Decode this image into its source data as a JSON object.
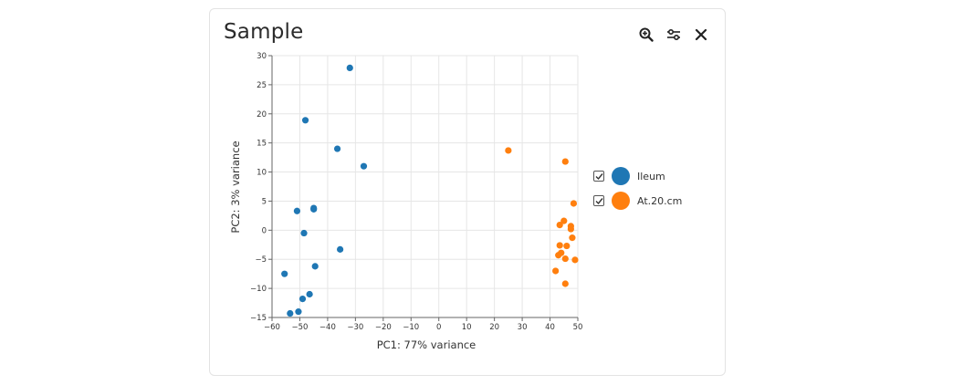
{
  "card": {
    "title": "Sample"
  },
  "toolbar": {
    "icons": [
      "zoom-in-icon",
      "sliders-icon",
      "close-icon"
    ]
  },
  "legend": {
    "items": [
      {
        "label": "Ileum",
        "color": "#1f77b4",
        "checked": true
      },
      {
        "label": "At.20.cm",
        "color": "#ff7f0e",
        "checked": true
      }
    ]
  },
  "chart_data": {
    "type": "scatter",
    "xlabel": "PC1: 77% variance",
    "ylabel": "PC2: 3% variance",
    "xlim": [
      -60,
      50
    ],
    "ylim": [
      -15,
      30
    ],
    "xticks": [
      -60,
      -50,
      -40,
      -30,
      -20,
      -10,
      0,
      10,
      20,
      30,
      40,
      50
    ],
    "yticks": [
      -15,
      -10,
      -5,
      0,
      5,
      10,
      15,
      20,
      25,
      30
    ],
    "grid": true,
    "legend_position": "right",
    "series": [
      {
        "name": "Ileum",
        "color": "#1f77b4",
        "points": [
          [
            -32,
            27.9
          ],
          [
            -48,
            18.9
          ],
          [
            -36.5,
            14
          ],
          [
            -27,
            11
          ],
          [
            -51,
            3.3
          ],
          [
            -45,
            3.6
          ],
          [
            -45,
            3.8
          ],
          [
            -48.5,
            -0.5
          ],
          [
            -35.5,
            -3.3
          ],
          [
            -44.5,
            -6.2
          ],
          [
            -55.5,
            -7.5
          ],
          [
            -46.5,
            -11
          ],
          [
            -49,
            -11.8
          ],
          [
            -50.5,
            -14
          ],
          [
            -53.5,
            -14.3
          ]
        ]
      },
      {
        "name": "At.20.cm",
        "color": "#ff7f0e",
        "points": [
          [
            25,
            13.7
          ],
          [
            45.5,
            11.8
          ],
          [
            48.5,
            4.6
          ],
          [
            45,
            1.6
          ],
          [
            43.5,
            0.9
          ],
          [
            47.5,
            0.7
          ],
          [
            47.5,
            0.2
          ],
          [
            48,
            -1.3
          ],
          [
            43.5,
            -2.6
          ],
          [
            46,
            -2.7
          ],
          [
            44,
            -3.9
          ],
          [
            43,
            -4.3
          ],
          [
            45.5,
            -4.9
          ],
          [
            49,
            -5.1
          ],
          [
            42,
            -7
          ],
          [
            45.5,
            -9.2
          ]
        ]
      }
    ]
  }
}
